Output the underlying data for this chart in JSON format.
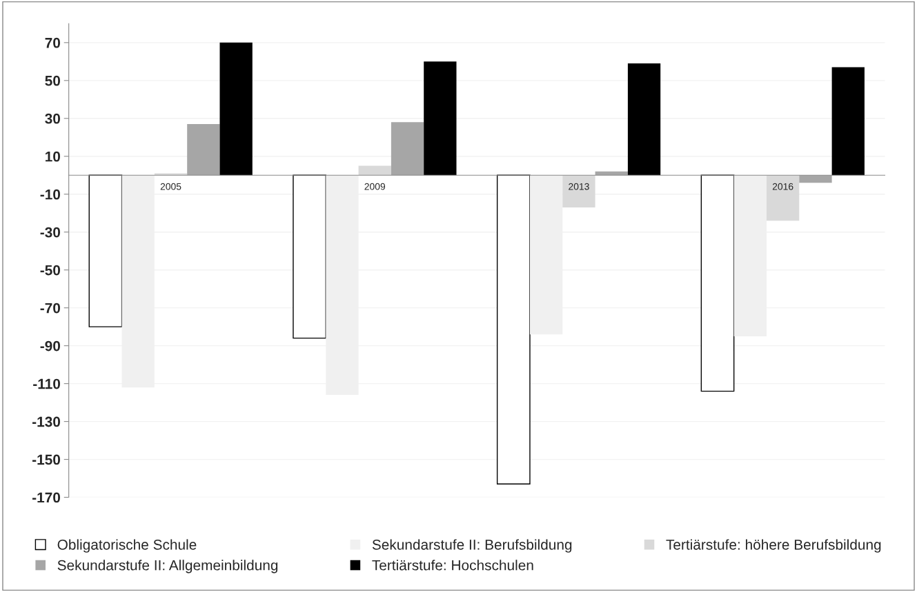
{
  "chart_data": {
    "type": "bar",
    "categories": [
      "2005",
      "2009",
      "2013",
      "2016"
    ],
    "series": [
      {
        "name": "Obligatorische Schule",
        "color": "#ffffff",
        "values": [
          -80,
          -86,
          -163,
          -114
        ]
      },
      {
        "name": "Sekundarstufe II: Berufsbildung",
        "color": "#f0f0f0",
        "values": [
          -112,
          -116,
          -84,
          -85
        ]
      },
      {
        "name": "Tertiärstufe: höhere Berufsbildung",
        "color": "#d9d9d9",
        "values": [
          1,
          5,
          -17,
          -24
        ]
      },
      {
        "name": "Sekundarstufe II: Allgemeinbildung",
        "color": "#a6a6a6",
        "values": [
          27,
          28,
          2,
          -4
        ]
      },
      {
        "name": "Tertiärstufe: Hochschulen",
        "color": "#000000",
        "values": [
          70,
          60,
          59,
          57
        ]
      }
    ],
    "ylim": [
      -170,
      80
    ],
    "yticks": [
      -170,
      -150,
      -130,
      -110,
      -90,
      -70,
      -50,
      -30,
      -10,
      10,
      30,
      50,
      70
    ],
    "grid": "y",
    "legend": "bottom"
  }
}
